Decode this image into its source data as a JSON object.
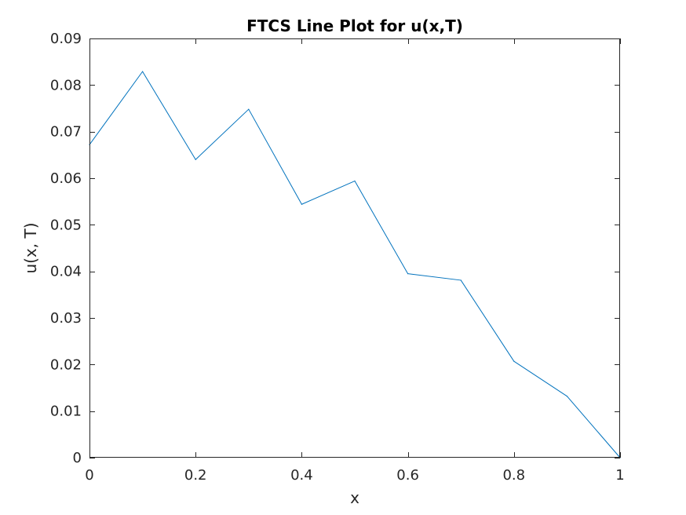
{
  "chart_data": {
    "type": "line",
    "title": "FTCS Line Plot for u(x,T)",
    "xlabel": "x",
    "ylabel": "u(x, T)",
    "xlim": [
      0,
      1
    ],
    "ylim": [
      0,
      0.09
    ],
    "xticks": [
      0,
      0.2,
      0.4,
      0.6,
      0.8,
      1
    ],
    "xtick_labels": [
      "0",
      "0.2",
      "0.4",
      "0.6",
      "0.8",
      "1"
    ],
    "yticks": [
      0,
      0.01,
      0.02,
      0.03,
      0.04,
      0.05,
      0.06,
      0.07,
      0.08,
      0.09
    ],
    "ytick_labels": [
      "0",
      "0.01",
      "0.02",
      "0.03",
      "0.04",
      "0.05",
      "0.06",
      "0.07",
      "0.08",
      "0.09"
    ],
    "grid": false,
    "legend": false,
    "series": [
      {
        "color": "#0072bd",
        "x": [
          0,
          0.1,
          0.2,
          0.3,
          0.4,
          0.5,
          0.6,
          0.7,
          0.8,
          0.9,
          1.0
        ],
        "y": [
          0.0672,
          0.0829,
          0.064,
          0.0748,
          0.0544,
          0.0594,
          0.0395,
          0.0381,
          0.0207,
          0.0132,
          0.0
        ]
      }
    ]
  }
}
